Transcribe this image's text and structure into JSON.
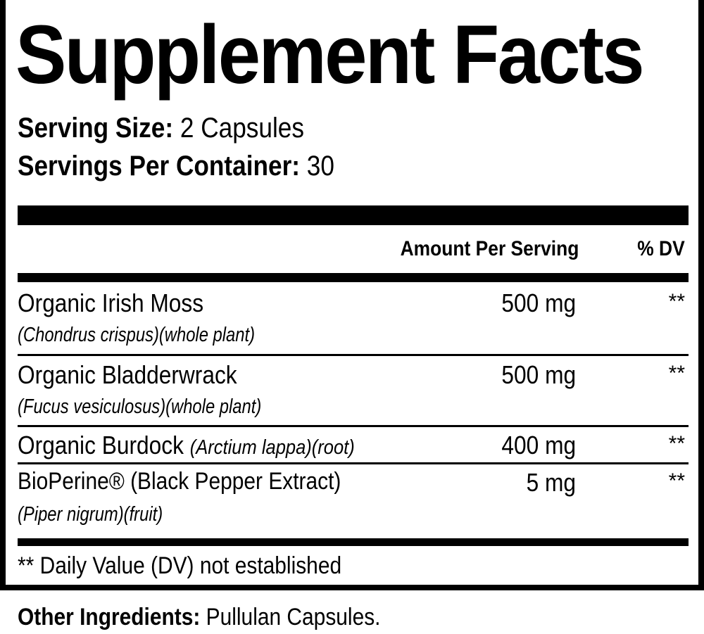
{
  "title": "Supplement Facts",
  "serving_size": {
    "label": "Serving Size:",
    "value": "2 Capsules"
  },
  "servings_per_container": {
    "label": "Servings Per Container:",
    "value": "30"
  },
  "header": {
    "amount": "Amount Per Serving",
    "dv": "% DV"
  },
  "ingredients": [
    {
      "name": "Organic Irish Moss",
      "detail": "(Chondrus crispus)(whole plant)",
      "amount": "500 mg",
      "dv": "**"
    },
    {
      "name": "Organic Bladderwrack",
      "detail": "(Fucus vesiculosus)(whole plant)",
      "amount": "500 mg",
      "dv": "**"
    },
    {
      "name": "Organic Burdock",
      "detail": "(Arctium lappa)(root)",
      "amount": "400 mg",
      "dv": "**"
    },
    {
      "name": "BioPerine® (Black Pepper Extract)",
      "detail": "(Piper nigrum)(fruit)",
      "amount": "5 mg",
      "dv": "**"
    }
  ],
  "footnote": "** Daily Value (DV) not established",
  "other_ingredients": {
    "label": "Other Ingredients:",
    "value": "Pullulan Capsules."
  }
}
